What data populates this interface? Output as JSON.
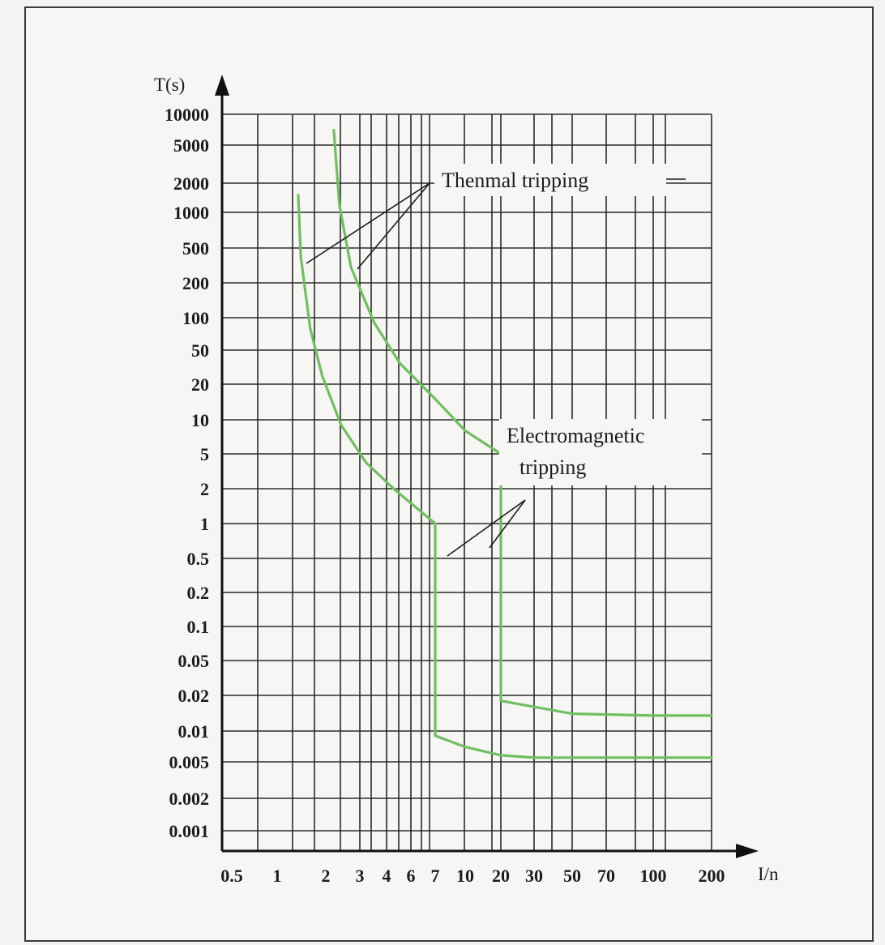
{
  "chart_data": {
    "type": "line",
    "title": "",
    "xlabel": "I/n",
    "ylabel": "T(s)",
    "x_scale": "categorical",
    "y_scale": "log",
    "x_ticks": [
      "0.5",
      "1",
      "2",
      "3",
      "4",
      "6",
      "7",
      "10",
      "20",
      "30",
      "50",
      "70",
      "100",
      "200"
    ],
    "y_ticks": [
      "10000",
      "5000",
      "2000",
      "1000",
      "500",
      "200",
      "100",
      "50",
      "20",
      "10",
      "5",
      "2",
      "1",
      "0.5",
      "0.2",
      "0.1",
      "0.05",
      "0.02",
      "0.01",
      "0.005",
      "0.002",
      "0.001"
    ],
    "grid": true,
    "line_color": "#6fbf5f",
    "series": [
      {
        "points": [
          [
            1.35,
            1500
          ],
          [
            1.4,
            400
          ],
          [
            1.6,
            80
          ],
          [
            1.9,
            25
          ],
          [
            2.4,
            9
          ],
          [
            3.2,
            4
          ],
          [
            4.5,
            2
          ],
          [
            7,
            1
          ],
          [
            7,
            0.009
          ],
          [
            10,
            0.007
          ],
          [
            20,
            0.0058
          ],
          [
            30,
            0.0055
          ],
          [
            50,
            0.0055
          ],
          [
            200,
            0.0055
          ]
        ]
      },
      {
        "points": [
          [
            2.2,
            7000
          ],
          [
            2.35,
            1200
          ],
          [
            2.7,
            300
          ],
          [
            3.5,
            90
          ],
          [
            5,
            35
          ],
          [
            7,
            15
          ],
          [
            10,
            8
          ],
          [
            20,
            5
          ],
          [
            20,
            0.018
          ],
          [
            30,
            0.016
          ],
          [
            50,
            0.014
          ],
          [
            100,
            0.0135
          ],
          [
            200,
            0.0135
          ]
        ]
      }
    ],
    "annotations": [
      {
        "text": "Thenmal tripping"
      },
      {
        "text": "Electromagnetic"
      },
      {
        "text": "tripping"
      }
    ]
  }
}
